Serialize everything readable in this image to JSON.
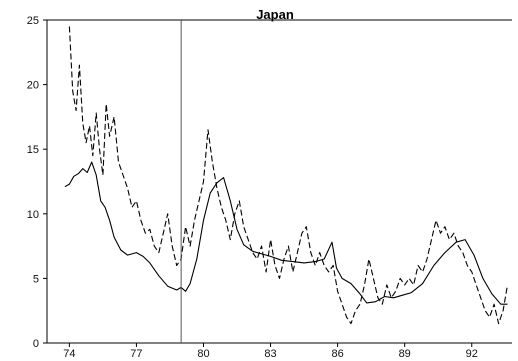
{
  "chart_data": {
    "type": "line",
    "title": "Japan",
    "xlabel": "",
    "ylabel": "",
    "xlim": [
      1973.0,
      1993.8
    ],
    "ylim": [
      0,
      25
    ],
    "grid": false,
    "legend": "none",
    "x_ticks": [
      {
        "value": 1974,
        "label": "74"
      },
      {
        "value": 1977,
        "label": "77"
      },
      {
        "value": 1980,
        "label": "80"
      },
      {
        "value": 1983,
        "label": "83"
      },
      {
        "value": 1986,
        "label": "86"
      },
      {
        "value": 1989,
        "label": "89"
      },
      {
        "value": 1992,
        "label": "92"
      }
    ],
    "y_ticks": [
      0,
      5,
      10,
      15,
      20,
      25
    ],
    "vertical_line": 1979.0,
    "series": [
      {
        "style": "solid",
        "color": "#000000",
        "points": [
          [
            1973.8,
            12.1
          ],
          [
            1974.0,
            12.3
          ],
          [
            1974.2,
            12.9
          ],
          [
            1974.4,
            13.1
          ],
          [
            1974.6,
            13.5
          ],
          [
            1974.8,
            13.2
          ],
          [
            1975.0,
            14.0
          ],
          [
            1975.2,
            13.0
          ],
          [
            1975.4,
            11.0
          ],
          [
            1975.6,
            10.5
          ],
          [
            1975.8,
            9.5
          ],
          [
            1976.0,
            8.2
          ],
          [
            1976.3,
            7.2
          ],
          [
            1976.6,
            6.8
          ],
          [
            1977.0,
            7.0
          ],
          [
            1977.3,
            6.7
          ],
          [
            1977.6,
            6.2
          ],
          [
            1978.0,
            5.2
          ],
          [
            1978.4,
            4.4
          ],
          [
            1978.8,
            4.1
          ],
          [
            1979.0,
            4.3
          ],
          [
            1979.2,
            4.0
          ],
          [
            1979.4,
            4.6
          ],
          [
            1979.7,
            6.5
          ],
          [
            1980.0,
            9.5
          ],
          [
            1980.3,
            11.6
          ],
          [
            1980.6,
            12.4
          ],
          [
            1980.9,
            12.8
          ],
          [
            1981.2,
            11.0
          ],
          [
            1981.5,
            8.8
          ],
          [
            1981.8,
            7.6
          ],
          [
            1982.2,
            7.1
          ],
          [
            1982.6,
            6.9
          ],
          [
            1983.0,
            6.7
          ],
          [
            1983.5,
            6.4
          ],
          [
            1984.0,
            6.3
          ],
          [
            1984.5,
            6.2
          ],
          [
            1985.0,
            6.3
          ],
          [
            1985.4,
            6.5
          ],
          [
            1985.75,
            7.8
          ],
          [
            1985.95,
            5.8
          ],
          [
            1986.2,
            5.0
          ],
          [
            1986.6,
            4.6
          ],
          [
            1987.0,
            3.8
          ],
          [
            1987.3,
            3.1
          ],
          [
            1987.7,
            3.2
          ],
          [
            1988.1,
            3.6
          ],
          [
            1988.5,
            3.5
          ],
          [
            1988.9,
            3.7
          ],
          [
            1989.3,
            3.9
          ],
          [
            1989.8,
            4.6
          ],
          [
            1990.3,
            6.0
          ],
          [
            1990.8,
            7.0
          ],
          [
            1991.3,
            7.8
          ],
          [
            1991.7,
            8.0
          ],
          [
            1992.1,
            6.8
          ],
          [
            1992.5,
            5.0
          ],
          [
            1992.9,
            3.8
          ],
          [
            1993.3,
            3.0
          ],
          [
            1993.6,
            3.0
          ]
        ]
      },
      {
        "style": "dashed",
        "color": "#000000",
        "points": [
          [
            1974.0,
            24.5
          ],
          [
            1974.15,
            19.5
          ],
          [
            1974.3,
            18.0
          ],
          [
            1974.45,
            21.5
          ],
          [
            1974.6,
            17.0
          ],
          [
            1974.75,
            15.5
          ],
          [
            1974.9,
            16.8
          ],
          [
            1975.05,
            14.5
          ],
          [
            1975.2,
            17.8
          ],
          [
            1975.35,
            15.0
          ],
          [
            1975.5,
            13.0
          ],
          [
            1975.65,
            18.5
          ],
          [
            1975.8,
            16.0
          ],
          [
            1976.0,
            17.5
          ],
          [
            1976.2,
            14.0
          ],
          [
            1976.4,
            13.0
          ],
          [
            1976.6,
            12.0
          ],
          [
            1976.8,
            10.5
          ],
          [
            1977.0,
            11.0
          ],
          [
            1977.2,
            9.5
          ],
          [
            1977.4,
            8.5
          ],
          [
            1977.6,
            8.8
          ],
          [
            1977.8,
            7.5
          ],
          [
            1978.0,
            7.0
          ],
          [
            1978.2,
            8.5
          ],
          [
            1978.4,
            10.0
          ],
          [
            1978.6,
            7.5
          ],
          [
            1978.8,
            6.0
          ],
          [
            1979.0,
            6.5
          ],
          [
            1979.2,
            9.0
          ],
          [
            1979.4,
            7.5
          ],
          [
            1979.6,
            9.5
          ],
          [
            1979.8,
            11.0
          ],
          [
            1980.0,
            12.5
          ],
          [
            1980.2,
            16.5
          ],
          [
            1980.4,
            14.0
          ],
          [
            1980.6,
            12.0
          ],
          [
            1980.8,
            10.5
          ],
          [
            1981.0,
            9.5
          ],
          [
            1981.2,
            8.0
          ],
          [
            1981.4,
            10.0
          ],
          [
            1981.6,
            11.0
          ],
          [
            1981.8,
            9.0
          ],
          [
            1982.0,
            8.0
          ],
          [
            1982.2,
            7.0
          ],
          [
            1982.4,
            6.5
          ],
          [
            1982.6,
            7.5
          ],
          [
            1982.8,
            5.5
          ],
          [
            1983.0,
            8.0
          ],
          [
            1983.2,
            6.0
          ],
          [
            1983.4,
            5.0
          ],
          [
            1983.6,
            6.5
          ],
          [
            1983.8,
            7.5
          ],
          [
            1984.0,
            5.5
          ],
          [
            1984.2,
            7.0
          ],
          [
            1984.4,
            8.5
          ],
          [
            1984.6,
            9.0
          ],
          [
            1984.8,
            7.0
          ],
          [
            1985.0,
            6.0
          ],
          [
            1985.2,
            7.0
          ],
          [
            1985.4,
            6.0
          ],
          [
            1985.6,
            5.5
          ],
          [
            1985.8,
            6.0
          ],
          [
            1986.0,
            4.0
          ],
          [
            1986.2,
            3.0
          ],
          [
            1986.4,
            2.0
          ],
          [
            1986.6,
            1.5
          ],
          [
            1986.8,
            2.5
          ],
          [
            1987.0,
            3.0
          ],
          [
            1987.2,
            4.5
          ],
          [
            1987.4,
            6.5
          ],
          [
            1987.6,
            5.0
          ],
          [
            1987.8,
            3.5
          ],
          [
            1988.0,
            3.0
          ],
          [
            1988.2,
            4.5
          ],
          [
            1988.4,
            3.5
          ],
          [
            1988.6,
            4.0
          ],
          [
            1988.8,
            5.0
          ],
          [
            1989.0,
            4.5
          ],
          [
            1989.2,
            5.0
          ],
          [
            1989.4,
            4.5
          ],
          [
            1989.6,
            6.0
          ],
          [
            1989.8,
            5.5
          ],
          [
            1990.0,
            6.5
          ],
          [
            1990.2,
            8.0
          ],
          [
            1990.4,
            9.5
          ],
          [
            1990.6,
            8.5
          ],
          [
            1990.8,
            9.0
          ],
          [
            1991.0,
            8.0
          ],
          [
            1991.2,
            8.5
          ],
          [
            1991.4,
            7.5
          ],
          [
            1991.6,
            7.0
          ],
          [
            1991.8,
            6.0
          ],
          [
            1992.0,
            5.5
          ],
          [
            1992.2,
            4.5
          ],
          [
            1992.4,
            3.5
          ],
          [
            1992.6,
            2.5
          ],
          [
            1992.8,
            2.0
          ],
          [
            1993.0,
            3.0
          ],
          [
            1993.2,
            1.5
          ],
          [
            1993.4,
            2.5
          ],
          [
            1993.6,
            4.5
          ]
        ]
      }
    ]
  }
}
